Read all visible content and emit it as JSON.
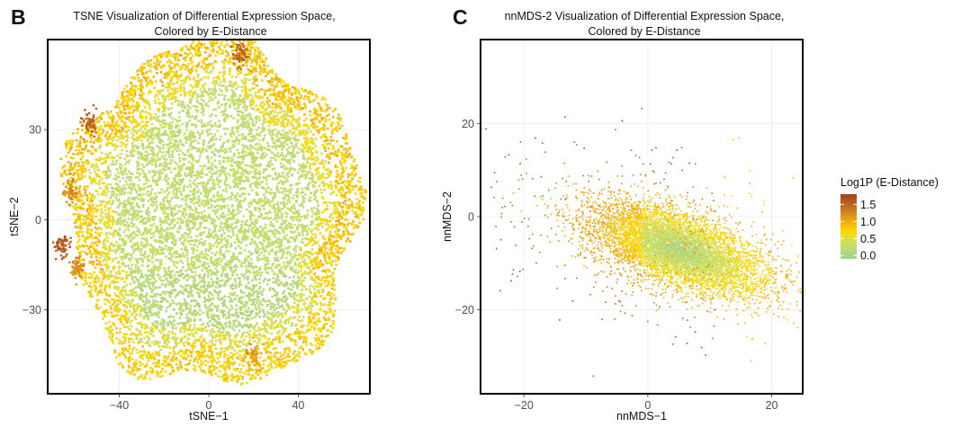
{
  "colors": {
    "scale": [
      "#a6d287",
      "#cbe06a",
      "#ffd900",
      "#e8a418",
      "#c97a1f",
      "#a63d1c"
    ],
    "scale_stops": [
      0.0,
      0.35,
      0.7,
      1.05,
      1.35,
      1.8
    ]
  },
  "legend": {
    "title": "Log1P (E-Distance)",
    "labels": [
      "1.5",
      "1.0",
      "0.5",
      "0.0"
    ],
    "values": [
      1.5,
      1.0,
      0.5,
      0.0
    ],
    "range": [
      -0.1,
      1.8
    ]
  },
  "chart_data": [
    {
      "type": "scatter",
      "panel": "B",
      "title": "TSNE Visualization of Differential Expression Space,",
      "subtitle": "Colored by E-Distance",
      "xlabel": "tSNE−1",
      "ylabel": "tSNE−2",
      "xlim": [
        -72,
        72
      ],
      "ylim": [
        -58,
        60
      ],
      "xticks": [
        -40,
        0,
        40
      ],
      "xtick_labels": [
        "−40",
        "0",
        "40"
      ],
      "yticks": [
        -30,
        0,
        30
      ],
      "ytick_labels": [
        "−30",
        "0",
        "30"
      ],
      "grid": true,
      "color_variable": "Log1P (E-Distance)",
      "point_cloud": {
        "shape": "dense disc",
        "center": [
          2,
          2
        ],
        "radius": 64,
        "n_points": 9000,
        "value_range_interior": [
          0.0,
          0.5
        ],
        "value_range_edge": [
          0.6,
          1.3
        ]
      },
      "clusters": [
        {
          "x": 14,
          "y": 55,
          "value": 1.5
        },
        {
          "x": -53,
          "y": 32,
          "value": 1.5
        },
        {
          "x": -66,
          "y": -9,
          "value": 1.6
        },
        {
          "x": -62,
          "y": 9,
          "value": 1.2
        },
        {
          "x": -59,
          "y": -16,
          "value": 1.2
        },
        {
          "x": 20,
          "y": -45,
          "value": 1.1
        }
      ]
    },
    {
      "type": "scatter",
      "panel": "C",
      "title": "nnMDS-2 Visualization of Differential Expression Space,",
      "subtitle": "Colored by E-Distance",
      "xlabel": "nnMDS−1",
      "ylabel": "nnMDS−2",
      "xlim": [
        -27,
        25
      ],
      "ylim": [
        -38,
        38
      ],
      "xticks": [
        -20,
        0,
        20
      ],
      "xtick_labels": [
        "−20",
        "0",
        "20"
      ],
      "yticks": [
        -20,
        0,
        20
      ],
      "ytick_labels": [
        "−20",
        "0",
        "20"
      ],
      "grid": true,
      "color_variable": "Log1P (E-Distance)",
      "point_cloud": {
        "shape": "tilted ellipse",
        "center": [
          5,
          -7
        ],
        "axis_angle_deg": -28,
        "n_core_points": 7000,
        "n_outlier_points": 700,
        "value_range_core": [
          0.0,
          0.7
        ],
        "value_range_outliers": [
          0.8,
          1.7
        ]
      }
    }
  ]
}
